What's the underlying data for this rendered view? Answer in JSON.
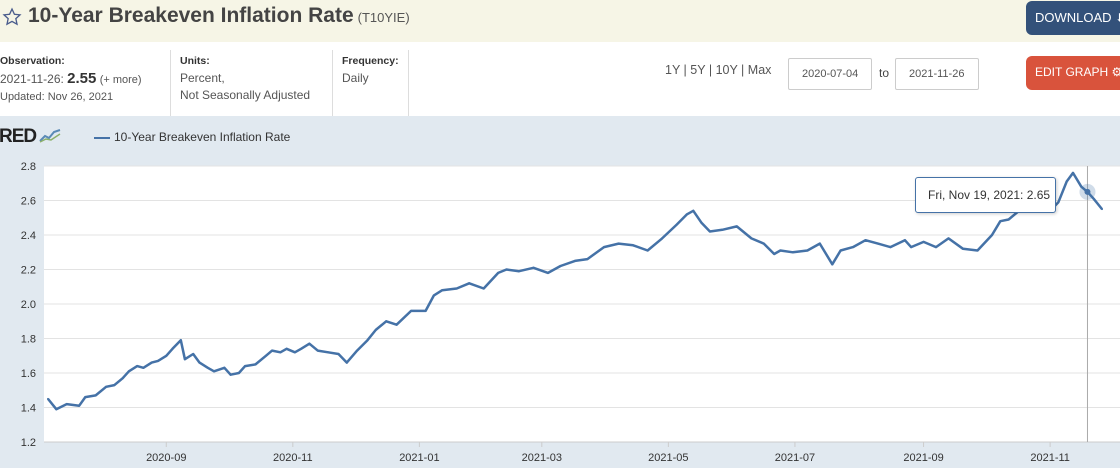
{
  "header": {
    "title": "10-Year Breakeven Inflation Rate",
    "series_id": "(T10YIE)",
    "download_label": "DOWNLOAD"
  },
  "meta": {
    "observation_label": "Observation:",
    "observation_date": "2021-11-26:",
    "observation_value": "2.55",
    "observation_more": "(+ more)",
    "updated": "Updated: Nov 26, 2021",
    "units_label": "Units:",
    "units_line1": "Percent,",
    "units_line2": "Not Seasonally Adjusted",
    "frequency_label": "Frequency:",
    "frequency_value": "Daily"
  },
  "controls": {
    "ranges": [
      "1Y",
      "5Y",
      "10Y",
      "Max"
    ],
    "start_date": "2020-07-04",
    "to_label": "to",
    "end_date": "2021-11-26",
    "edit_label": "EDIT GRAPH"
  },
  "legend": {
    "logo_text": "RED",
    "series_name": "10-Year Breakeven Inflation Rate"
  },
  "tooltip": {
    "date": "Fri, Nov 19, 2021:",
    "value": "2.65"
  },
  "colors": {
    "line": "#4572a7",
    "download_button": "#33517a",
    "edit_button": "#d9533c",
    "chart_background": "#e1e9f0",
    "plot_background": "#ffffff"
  },
  "chart_data": {
    "type": "line",
    "ylabel": "",
    "xlabel": "",
    "ylim": [
      1.2,
      2.8
    ],
    "yticks": [
      1.2,
      1.4,
      1.6,
      1.8,
      2.0,
      2.2,
      2.4,
      2.6,
      2.8
    ],
    "xlim": [
      "2020-07-06",
      "2021-11-26"
    ],
    "xticks": [
      "2020-09",
      "2020-11",
      "2021-01",
      "2021-03",
      "2021-05",
      "2021-07",
      "2021-09",
      "2021-11"
    ],
    "grid": "horizontal",
    "series": [
      {
        "name": "10-Year Breakeven Inflation Rate",
        "points": [
          [
            "2020-07-06",
            1.45
          ],
          [
            "2020-07-10",
            1.39
          ],
          [
            "2020-07-15",
            1.42
          ],
          [
            "2020-07-21",
            1.41
          ],
          [
            "2020-07-24",
            1.46
          ],
          [
            "2020-07-29",
            1.47
          ],
          [
            "2020-08-03",
            1.52
          ],
          [
            "2020-08-07",
            1.53
          ],
          [
            "2020-08-11",
            1.57
          ],
          [
            "2020-08-14",
            1.61
          ],
          [
            "2020-08-18",
            1.64
          ],
          [
            "2020-08-21",
            1.63
          ],
          [
            "2020-08-25",
            1.66
          ],
          [
            "2020-08-28",
            1.67
          ],
          [
            "2020-09-01",
            1.7
          ],
          [
            "2020-09-04",
            1.74
          ],
          [
            "2020-09-08",
            1.79
          ],
          [
            "2020-09-10",
            1.68
          ],
          [
            "2020-09-14",
            1.71
          ],
          [
            "2020-09-17",
            1.66
          ],
          [
            "2020-09-21",
            1.63
          ],
          [
            "2020-09-24",
            1.61
          ],
          [
            "2020-09-29",
            1.63
          ],
          [
            "2020-10-02",
            1.59
          ],
          [
            "2020-10-06",
            1.6
          ],
          [
            "2020-10-09",
            1.64
          ],
          [
            "2020-10-14",
            1.65
          ],
          [
            "2020-10-19",
            1.7
          ],
          [
            "2020-10-22",
            1.73
          ],
          [
            "2020-10-26",
            1.72
          ],
          [
            "2020-10-29",
            1.74
          ],
          [
            "2020-11-02",
            1.72
          ],
          [
            "2020-11-05",
            1.74
          ],
          [
            "2020-11-09",
            1.77
          ],
          [
            "2020-11-13",
            1.73
          ],
          [
            "2020-11-18",
            1.72
          ],
          [
            "2020-11-23",
            1.71
          ],
          [
            "2020-11-27",
            1.66
          ],
          [
            "2020-12-02",
            1.73
          ],
          [
            "2020-12-07",
            1.79
          ],
          [
            "2020-12-11",
            1.85
          ],
          [
            "2020-12-16",
            1.9
          ],
          [
            "2020-12-21",
            1.88
          ],
          [
            "2020-12-28",
            1.96
          ],
          [
            "2021-01-04",
            1.96
          ],
          [
            "2021-01-08",
            2.05
          ],
          [
            "2021-01-12",
            2.08
          ],
          [
            "2021-01-19",
            2.09
          ],
          [
            "2021-01-25",
            2.12
          ],
          [
            "2021-02-01",
            2.09
          ],
          [
            "2021-02-08",
            2.18
          ],
          [
            "2021-02-12",
            2.2
          ],
          [
            "2021-02-18",
            2.19
          ],
          [
            "2021-02-25",
            2.21
          ],
          [
            "2021-03-04",
            2.18
          ],
          [
            "2021-03-10",
            2.22
          ],
          [
            "2021-03-17",
            2.25
          ],
          [
            "2021-03-23",
            2.26
          ],
          [
            "2021-03-31",
            2.33
          ],
          [
            "2021-04-07",
            2.35
          ],
          [
            "2021-04-14",
            2.34
          ],
          [
            "2021-04-21",
            2.31
          ],
          [
            "2021-04-28",
            2.38
          ],
          [
            "2021-05-05",
            2.46
          ],
          [
            "2021-05-10",
            2.52
          ],
          [
            "2021-05-13",
            2.54
          ],
          [
            "2021-05-17",
            2.47
          ],
          [
            "2021-05-21",
            2.42
          ],
          [
            "2021-05-27",
            2.43
          ],
          [
            "2021-06-03",
            2.45
          ],
          [
            "2021-06-10",
            2.38
          ],
          [
            "2021-06-16",
            2.35
          ],
          [
            "2021-06-21",
            2.29
          ],
          [
            "2021-06-24",
            2.31
          ],
          [
            "2021-06-30",
            2.3
          ],
          [
            "2021-07-07",
            2.31
          ],
          [
            "2021-07-13",
            2.35
          ],
          [
            "2021-07-19",
            2.23
          ],
          [
            "2021-07-23",
            2.31
          ],
          [
            "2021-07-29",
            2.33
          ],
          [
            "2021-08-04",
            2.37
          ],
          [
            "2021-08-10",
            2.35
          ],
          [
            "2021-08-16",
            2.33
          ],
          [
            "2021-08-23",
            2.37
          ],
          [
            "2021-08-26",
            2.33
          ],
          [
            "2021-09-01",
            2.36
          ],
          [
            "2021-09-07",
            2.33
          ],
          [
            "2021-09-13",
            2.38
          ],
          [
            "2021-09-20",
            2.32
          ],
          [
            "2021-09-27",
            2.31
          ],
          [
            "2021-10-04",
            2.4
          ],
          [
            "2021-10-08",
            2.48
          ],
          [
            "2021-10-12",
            2.49
          ],
          [
            "2021-10-18",
            2.55
          ],
          [
            "2021-10-22",
            2.62
          ],
          [
            "2021-10-27",
            2.54
          ],
          [
            "2021-11-01",
            2.54
          ],
          [
            "2021-11-05",
            2.59
          ],
          [
            "2021-11-09",
            2.71
          ],
          [
            "2021-11-12",
            2.76
          ],
          [
            "2021-11-16",
            2.68
          ],
          [
            "2021-11-19",
            2.65
          ],
          [
            "2021-11-22",
            2.61
          ],
          [
            "2021-11-26",
            2.55
          ]
        ]
      }
    ]
  }
}
